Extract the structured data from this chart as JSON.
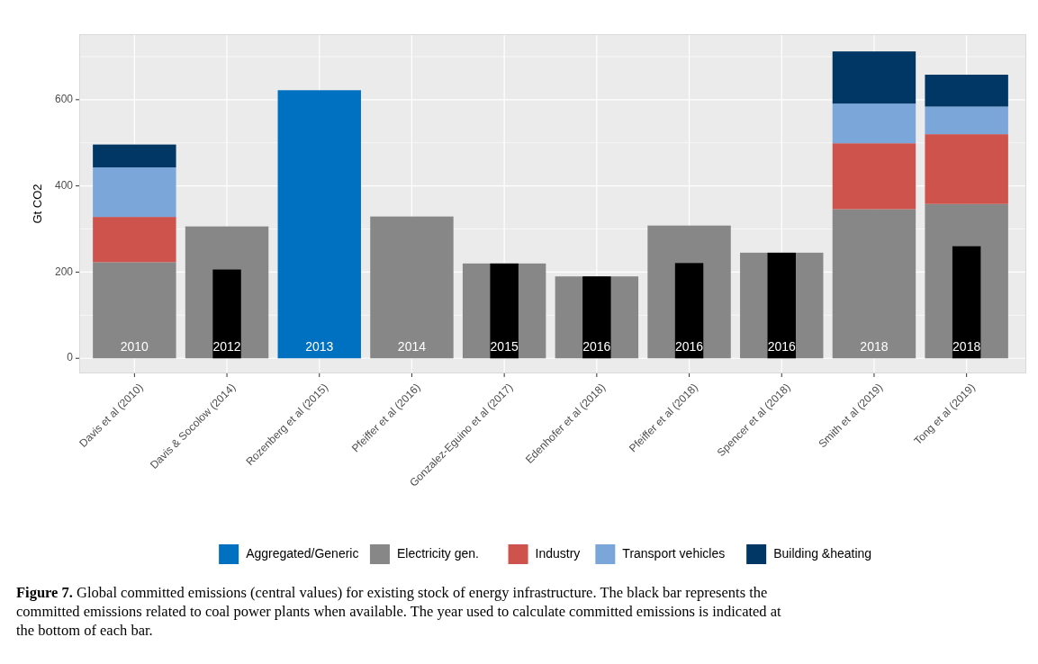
{
  "chart_data": [
    {
      "type": "bar",
      "stacked": true,
      "ylabel": "Gt CO2",
      "categories": [
        "Davis et al (2010)",
        "Davis & Socolow (2014)",
        "Rozenberg et al (2015)",
        "Pfeiffer et al (2016)",
        "Gonzalez-Eguino et al (2017)",
        "Edenhofer et al (2018)",
        "Pfeiffer et al (2018)",
        "Spencer et al (2018)",
        "Smith et al (2019)",
        "Tong et al (2019)"
      ],
      "series": [
        {
          "name": "Aggregated/Generic",
          "color": "#0070c0",
          "values": [
            null,
            null,
            622,
            null,
            null,
            null,
            null,
            null,
            null,
            null
          ]
        },
        {
          "name": "Electricity gen.",
          "color": "#878787",
          "values": [
            223,
            306,
            null,
            329,
            220,
            190,
            308,
            245,
            346,
            358
          ]
        },
        {
          "name": "Industry",
          "color": "#cd534c",
          "values": [
            105,
            null,
            null,
            null,
            null,
            null,
            null,
            null,
            153,
            162
          ]
        },
        {
          "name": "Transport vehicles",
          "color": "#7aa6da",
          "values": [
            115,
            null,
            null,
            null,
            null,
            null,
            null,
            null,
            92,
            64
          ]
        },
        {
          "name": "Building &heating",
          "color": "#003764",
          "values": [
            53,
            null,
            null,
            null,
            null,
            null,
            null,
            null,
            121,
            74
          ]
        }
      ],
      "ylim": [
        -35,
        752
      ],
      "yticks": [
        0,
        200,
        400,
        600
      ],
      "grid": true,
      "legend": "bottom",
      "annotations": [
        "2010",
        "2012",
        "2013",
        "2014",
        "2015",
        "2016",
        "2016",
        "2016",
        "2018",
        "2018",
        "**Figure 7.** Global committed emissions (central values) for existing stock of energy infrastructure. The black bar represents the committed emissions related to coal power plants when available. The year used to calculate committed emissions is indicated at the bottom of each bar."
      ]
    },
    {
      "type": "bar",
      "categories": [
        null,
        null,
        null,
        null,
        null,
        null,
        null,
        null,
        null,
        null
      ],
      "series": [
        {
          "color": "#000000",
          "values": [
            null,
            206,
            null,
            null,
            220,
            190,
            221,
            245,
            null,
            260
          ]
        }
      ],
      "ylim": [
        -35,
        752
      ],
      "tick_labels": false
    }
  ]
}
